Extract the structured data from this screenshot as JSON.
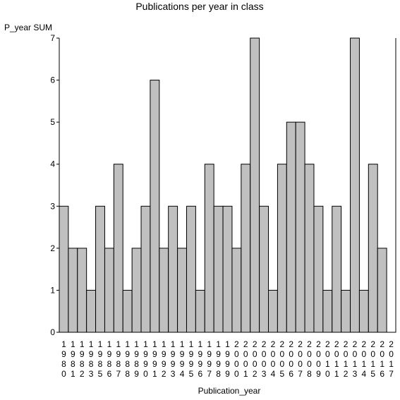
{
  "chart_data": {
    "type": "bar",
    "title": "Publications per year in class",
    "xlabel": "Publication_year",
    "ylabel": "P_year SUM",
    "ylim": [
      0,
      7
    ],
    "yticks": [
      0,
      1,
      2,
      3,
      4,
      5,
      6,
      7
    ],
    "grid": false,
    "categories": [
      "1980",
      "1981",
      "1982",
      "1983",
      "1985",
      "1986",
      "1987",
      "1988",
      "1989",
      "1990",
      "1991",
      "1992",
      "1993",
      "1994",
      "1995",
      "1996",
      "1997",
      "1998",
      "1999",
      "2000",
      "2001",
      "2002",
      "2003",
      "2004",
      "2005",
      "2006",
      "2007",
      "2008",
      "2009",
      "2010",
      "2011",
      "2012",
      "2013",
      "2014",
      "2015",
      "2016",
      "2017"
    ],
    "values": [
      3,
      2,
      2,
      1,
      3,
      2,
      4,
      1,
      2,
      3,
      6,
      2,
      3,
      2,
      3,
      1,
      4,
      3,
      3,
      2,
      4,
      7,
      3,
      1,
      4,
      5,
      5,
      4,
      3,
      1,
      3,
      1,
      7,
      1,
      4,
      2,
      0
    ],
    "bar_color": "#c0c0c0"
  }
}
